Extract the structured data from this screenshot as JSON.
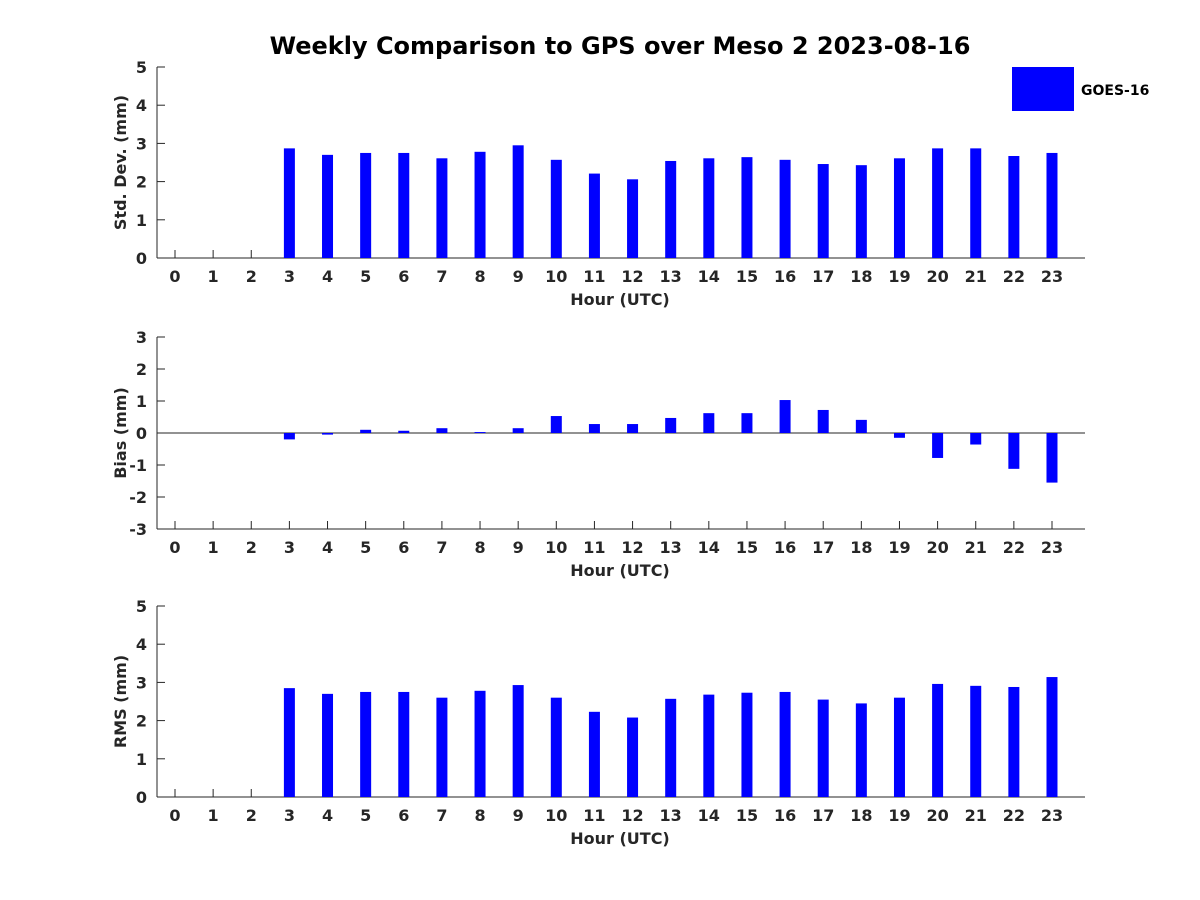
{
  "chart_title": "Weekly Comparison to GPS over Meso 2 2023-08-16",
  "legend": {
    "label": "GOES-16",
    "color": "#0000ff"
  },
  "bar_color": "#0000ff",
  "chart_data": [
    {
      "type": "bar",
      "name": "std-dev",
      "categories": [
        "0",
        "1",
        "2",
        "3",
        "4",
        "5",
        "6",
        "7",
        "8",
        "9",
        "10",
        "11",
        "12",
        "13",
        "14",
        "15",
        "16",
        "17",
        "18",
        "19",
        "20",
        "21",
        "22",
        "23"
      ],
      "series": [
        {
          "name": "GOES-16",
          "values": [
            null,
            null,
            null,
            2.87,
            2.7,
            2.75,
            2.75,
            2.61,
            2.78,
            2.95,
            2.57,
            2.21,
            2.06,
            2.54,
            2.61,
            2.64,
            2.57,
            2.46,
            2.43,
            2.61,
            2.87,
            2.87,
            2.67,
            2.75
          ]
        }
      ],
      "xlabel": "Hour (UTC)",
      "ylabel": "Std. Dev. (mm)",
      "ylim": [
        0,
        5
      ],
      "yticks": [
        0,
        1,
        2,
        3,
        4,
        5
      ]
    },
    {
      "type": "bar",
      "name": "bias",
      "categories": [
        "0",
        "1",
        "2",
        "3",
        "4",
        "5",
        "6",
        "7",
        "8",
        "9",
        "10",
        "11",
        "12",
        "13",
        "14",
        "15",
        "16",
        "17",
        "18",
        "19",
        "20",
        "21",
        "22",
        "23"
      ],
      "series": [
        {
          "name": "GOES-16",
          "values": [
            null,
            null,
            null,
            -0.2,
            -0.05,
            0.1,
            0.07,
            0.15,
            0.03,
            0.15,
            0.53,
            0.28,
            0.28,
            0.47,
            0.62,
            0.62,
            1.03,
            0.72,
            0.41,
            -0.15,
            -0.78,
            -0.36,
            -1.12,
            -1.55
          ]
        }
      ],
      "xlabel": "Hour (UTC)",
      "ylabel": "Bias (mm)",
      "ylim": [
        -3,
        3
      ],
      "yticks": [
        -3,
        -2,
        -1,
        0,
        1,
        2,
        3
      ]
    },
    {
      "type": "bar",
      "name": "rms",
      "categories": [
        "0",
        "1",
        "2",
        "3",
        "4",
        "5",
        "6",
        "7",
        "8",
        "9",
        "10",
        "11",
        "12",
        "13",
        "14",
        "15",
        "16",
        "17",
        "18",
        "19",
        "20",
        "21",
        "22",
        "23"
      ],
      "series": [
        {
          "name": "GOES-16",
          "values": [
            null,
            null,
            null,
            2.85,
            2.7,
            2.75,
            2.75,
            2.6,
            2.78,
            2.93,
            2.6,
            2.23,
            2.08,
            2.57,
            2.68,
            2.73,
            2.75,
            2.55,
            2.45,
            2.6,
            2.96,
            2.91,
            2.88,
            3.14
          ]
        }
      ],
      "xlabel": "Hour (UTC)",
      "ylabel": "RMS (mm)",
      "ylim": [
        0,
        5
      ],
      "yticks": [
        0,
        1,
        2,
        3,
        4,
        5
      ]
    }
  ]
}
